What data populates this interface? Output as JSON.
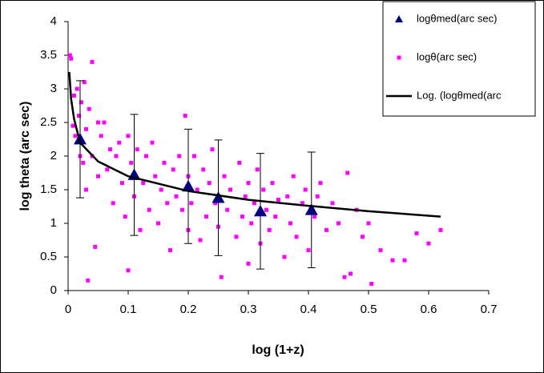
{
  "chart_data": {
    "type": "scatter",
    "xlabel": "log (1+z)",
    "ylabel": "log theta (arc sec)",
    "xlim": [
      0,
      0.7
    ],
    "xticks": [
      0,
      0.1,
      0.2,
      0.3,
      0.4,
      0.5,
      0.6,
      0.7
    ],
    "ylim": [
      0,
      4
    ],
    "yticks": [
      0,
      0.5,
      1,
      1.5,
      2,
      2.5,
      3,
      3.5,
      4
    ],
    "grid": false,
    "legend": "upper right",
    "series": [
      {
        "name": "logθmed(arc sec)",
        "color": "#000080",
        "marker": "triangle",
        "x": [
          0.02,
          0.11,
          0.2,
          0.25,
          0.32,
          0.405
        ],
        "values": [
          2.25,
          1.72,
          1.55,
          1.38,
          1.18,
          1.2
        ],
        "errors": [
          0.87,
          0.9,
          0.85,
          0.86,
          0.86,
          0.86
        ]
      },
      {
        "name": "logθ(arc sec)",
        "color": "#ff00ff",
        "marker": "square",
        "x": [
          0.003,
          0.005,
          0.008,
          0.01,
          0.012,
          0.015,
          0.018,
          0.02,
          0.022,
          0.025,
          0.027,
          0.03,
          0.03,
          0.033,
          0.035,
          0.04,
          0.04,
          0.045,
          0.05,
          0.05,
          0.055,
          0.06,
          0.065,
          0.07,
          0.075,
          0.08,
          0.085,
          0.09,
          0.095,
          0.1,
          0.1,
          0.105,
          0.11,
          0.115,
          0.12,
          0.125,
          0.13,
          0.135,
          0.14,
          0.145,
          0.15,
          0.155,
          0.16,
          0.165,
          0.17,
          0.175,
          0.18,
          0.185,
          0.19,
          0.195,
          0.2,
          0.2,
          0.205,
          0.21,
          0.215,
          0.22,
          0.225,
          0.23,
          0.235,
          0.24,
          0.245,
          0.25,
          0.255,
          0.26,
          0.265,
          0.27,
          0.28,
          0.285,
          0.29,
          0.295,
          0.3,
          0.3,
          0.305,
          0.31,
          0.315,
          0.32,
          0.325,
          0.33,
          0.335,
          0.34,
          0.345,
          0.35,
          0.36,
          0.365,
          0.37,
          0.375,
          0.38,
          0.39,
          0.395,
          0.4,
          0.41,
          0.415,
          0.42,
          0.43,
          0.44,
          0.45,
          0.46,
          0.465,
          0.47,
          0.48,
          0.49,
          0.5,
          0.505,
          0.52,
          0.54,
          0.56,
          0.58,
          0.6,
          0.62
        ],
        "values": [
          3.5,
          3.45,
          2.45,
          2.9,
          2.3,
          3.0,
          2.6,
          2.0,
          2.8,
          1.9,
          3.1,
          1.5,
          2.4,
          0.15,
          2.7,
          3.4,
          2.0,
          0.65,
          2.5,
          1.7,
          2.3,
          2.5,
          1.8,
          2.1,
          1.3,
          2.0,
          2.2,
          1.6,
          1.1,
          2.3,
          0.3,
          1.9,
          1.4,
          2.1,
          0.9,
          1.6,
          2.0,
          1.2,
          2.2,
          1.7,
          1.0,
          1.5,
          1.9,
          1.3,
          0.6,
          1.8,
          1.4,
          2.0,
          1.2,
          2.6,
          1.7,
          0.9,
          1.3,
          2.0,
          1.5,
          0.75,
          1.8,
          1.1,
          1.6,
          2.1,
          1.3,
          0.95,
          0.2,
          1.7,
          1.2,
          1.5,
          0.8,
          1.9,
          1.1,
          1.4,
          0.4,
          1.6,
          1.0,
          1.3,
          1.8,
          0.7,
          1.5,
          1.2,
          0.9,
          1.6,
          1.1,
          1.35,
          0.5,
          1.4,
          1.0,
          1.7,
          0.8,
          1.3,
          1.5,
          0.6,
          1.1,
          1.4,
          1.6,
          0.9,
          1.3,
          1.0,
          0.2,
          1.75,
          0.25,
          1.2,
          0.8,
          1.0,
          0.1,
          0.6,
          0.45,
          0.45,
          0.85,
          0.7,
          0.9
        ]
      },
      {
        "name": "Log. (logθmed(arc",
        "color": "#000000",
        "marker": "line",
        "x": [
          0.002,
          0.005,
          0.01,
          0.02,
          0.05,
          0.1,
          0.2,
          0.3,
          0.4,
          0.5,
          0.62
        ],
        "values": [
          3.25,
          2.85,
          2.55,
          2.2,
          1.92,
          1.7,
          1.48,
          1.35,
          1.26,
          1.18,
          1.1
        ]
      }
    ]
  }
}
